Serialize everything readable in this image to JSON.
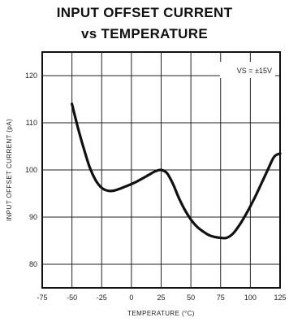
{
  "chart_data": {
    "type": "line",
    "title": "INPUT OFFSET CURRENT",
    "subtitle": "vs TEMPERATURE",
    "xlabel": "TEMPERATURE (°C)",
    "ylabel": "INPUT OFFSET CURRENT (pA)",
    "annotation": "VS = ±15V",
    "xlim": [
      -75,
      125
    ],
    "ylim": [
      75,
      125
    ],
    "x_ticks": [
      -75,
      -50,
      -25,
      0,
      25,
      50,
      75,
      100,
      125
    ],
    "y_ticks": [
      80,
      90,
      100,
      110,
      120
    ],
    "grid": true,
    "series": [
      {
        "x": [
          -50,
          -45,
          -40,
          -35,
          -30,
          -25,
          -20,
          -15,
          -10,
          -5,
          0,
          5,
          10,
          15,
          20,
          25,
          30,
          35,
          40,
          45,
          50,
          55,
          60,
          65,
          70,
          75,
          80,
          85,
          90,
          95,
          100,
          105,
          110,
          115,
          120,
          125
        ],
        "values": [
          114,
          109,
          104.5,
          100.5,
          97.8,
          96.2,
          95.6,
          95.6,
          96.0,
          96.5,
          97.0,
          97.6,
          98.3,
          99.0,
          99.7,
          100.0,
          99.3,
          97.0,
          94.0,
          91.5,
          89.5,
          88.0,
          87.0,
          86.2,
          85.8,
          85.6,
          85.6,
          86.4,
          88.0,
          90.0,
          92.3,
          94.8,
          97.5,
          100.2,
          102.8,
          103.5
        ]
      }
    ]
  }
}
